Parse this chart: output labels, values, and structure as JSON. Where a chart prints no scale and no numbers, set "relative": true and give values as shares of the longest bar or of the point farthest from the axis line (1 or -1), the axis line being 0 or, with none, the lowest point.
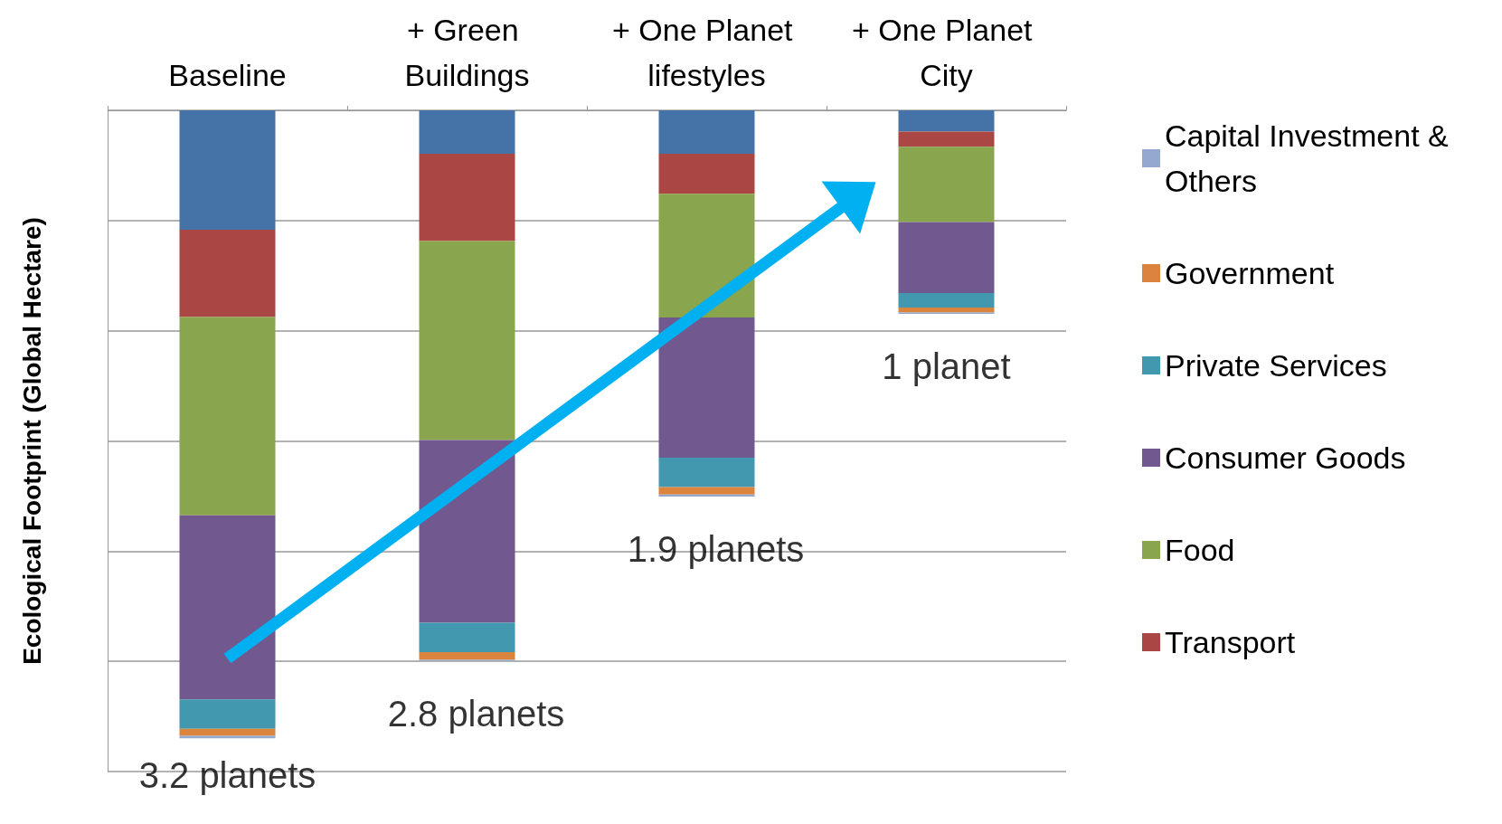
{
  "chart_data": {
    "type": "bar",
    "stacked": true,
    "relative": true,
    "ylabel": "Ecological Footprint (Global Hectare)",
    "categories": [
      "Baseline",
      "+ Green Buildings",
      "+ One Planet lifestyles",
      "+ One Planet City"
    ],
    "series": [
      {
        "color": "#4572a7",
        "values": [
          -0.19,
          -0.069,
          -0.069,
          -0.034
        ]
      },
      {
        "name": "Transport",
        "color": "#aa4643",
        "values": [
          -0.139,
          -0.139,
          -0.064,
          -0.024
        ]
      },
      {
        "name": "Food",
        "color": "#89a54e",
        "values": [
          -0.316,
          -0.317,
          -0.197,
          -0.12
        ]
      },
      {
        "name": "Consumer Goods",
        "color": "#71588f",
        "values": [
          -0.293,
          -0.291,
          -0.223,
          -0.113
        ]
      },
      {
        "name": "Private Services",
        "color": "#4198af",
        "values": [
          -0.047,
          -0.047,
          -0.047,
          -0.023
        ]
      },
      {
        "name": "Government",
        "color": "#db843d",
        "values": [
          -0.011,
          -0.012,
          -0.012,
          -0.008
        ]
      },
      {
        "name": "Capital Investment & Others",
        "color": "#93a9cf",
        "values": [
          -0.004,
          -0.002,
          -0.003,
          -0.002
        ]
      }
    ],
    "annotations": [
      {
        "text": "3.2 planets",
        "x": "Baseline",
        "y": -1
      },
      {
        "text": "2.8 planets",
        "x": "+ Green Buildings",
        "y": -0.877
      },
      {
        "text": "1.9 planets",
        "x": "+ One Planet lifestyles",
        "y": -0.615
      },
      {
        "text": "1 planet",
        "x": "+ One Planet City",
        "y": -0.324
      }
    ],
    "grid": "y",
    "legend": "right"
  }
}
